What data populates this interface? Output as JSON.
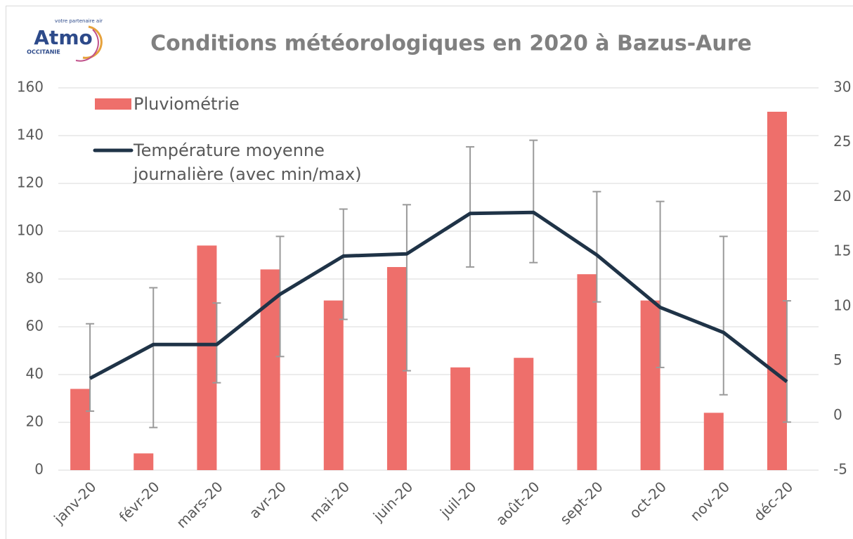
{
  "logo": {
    "name": "Atmo",
    "tagline": "votre partenaire air",
    "region": "OCCITANIE"
  },
  "chart_data": {
    "type": "bar",
    "title": "Conditions météorologiques en 2020 à Bazus-Aure",
    "categories": [
      "janv-20",
      "févr-20",
      "mars-20",
      "avr-20",
      "mai-20",
      "juin-20",
      "juil-20",
      "août-20",
      "sept-20",
      "oct-20",
      "nov-20",
      "déc-20"
    ],
    "series": [
      {
        "name": "Pluviométrie",
        "type": "bar",
        "color": "#ee6f6b",
        "axis": "y",
        "values": [
          34,
          7,
          94,
          84,
          71,
          85,
          43,
          47,
          82,
          71,
          24,
          150
        ]
      },
      {
        "name": "Température moyenne journalière (avec min/max)",
        "type": "line",
        "color": "#1f3347",
        "axis": "y2",
        "error_color": "#9a9a9a",
        "values": [
          3.4,
          6.5,
          6.5,
          11.1,
          14.6,
          14.8,
          18.5,
          18.6,
          14.7,
          9.9,
          7.6,
          3.1
        ],
        "max": [
          8.4,
          11.7,
          10.3,
          16.4,
          18.9,
          19.3,
          24.6,
          25.2,
          20.5,
          19.6,
          16.4,
          10.5
        ],
        "min": [
          0.4,
          -1.1,
          3.0,
          5.4,
          8.8,
          4.1,
          13.6,
          14.0,
          10.4,
          4.4,
          1.9,
          -0.6
        ]
      }
    ],
    "ylim": [
      0,
      160
    ],
    "yticks": [
      0,
      20,
      40,
      60,
      80,
      100,
      120,
      140,
      160
    ],
    "y2lim": [
      -5,
      30
    ],
    "y2ticks": [
      -5,
      0,
      5,
      10,
      15,
      20,
      25,
      30
    ],
    "grid": true,
    "legend": "top-left"
  }
}
